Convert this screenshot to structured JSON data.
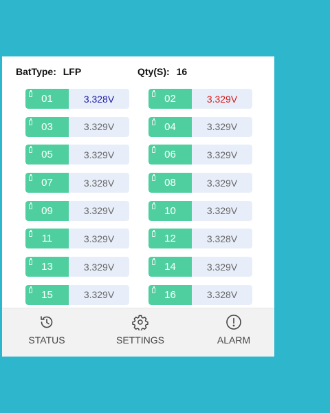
{
  "info": {
    "battype_label": "BatType:",
    "battype_value": "LFP",
    "qty_label": "Qty(S):",
    "qty_value": "16"
  },
  "cells": [
    {
      "num": "01",
      "voltage": "3.328V",
      "mark": "min"
    },
    {
      "num": "02",
      "voltage": "3.329V",
      "mark": "max"
    },
    {
      "num": "03",
      "voltage": "3.329V",
      "mark": ""
    },
    {
      "num": "04",
      "voltage": "3.329V",
      "mark": ""
    },
    {
      "num": "05",
      "voltage": "3.329V",
      "mark": ""
    },
    {
      "num": "06",
      "voltage": "3.329V",
      "mark": ""
    },
    {
      "num": "07",
      "voltage": "3.328V",
      "mark": ""
    },
    {
      "num": "08",
      "voltage": "3.329V",
      "mark": ""
    },
    {
      "num": "09",
      "voltage": "3.329V",
      "mark": ""
    },
    {
      "num": "10",
      "voltage": "3.329V",
      "mark": ""
    },
    {
      "num": "11",
      "voltage": "3.329V",
      "mark": ""
    },
    {
      "num": "12",
      "voltage": "3.328V",
      "mark": ""
    },
    {
      "num": "13",
      "voltage": "3.329V",
      "mark": ""
    },
    {
      "num": "14",
      "voltage": "3.329V",
      "mark": ""
    },
    {
      "num": "15",
      "voltage": "3.329V",
      "mark": ""
    },
    {
      "num": "16",
      "voltage": "3.328V",
      "mark": ""
    }
  ],
  "nav": [
    {
      "label": "STATUS",
      "icon": "history-icon"
    },
    {
      "label": "SETTINGS",
      "icon": "gear-icon"
    },
    {
      "label": "ALARM",
      "icon": "alert-circle-icon"
    }
  ],
  "colors": {
    "background": "#2db6cc",
    "cell_number": "#4fcf9f",
    "cell_value_bg": "#e8eef9",
    "min_voltage": "#1a1aa8",
    "max_voltage": "#d41a1a"
  }
}
